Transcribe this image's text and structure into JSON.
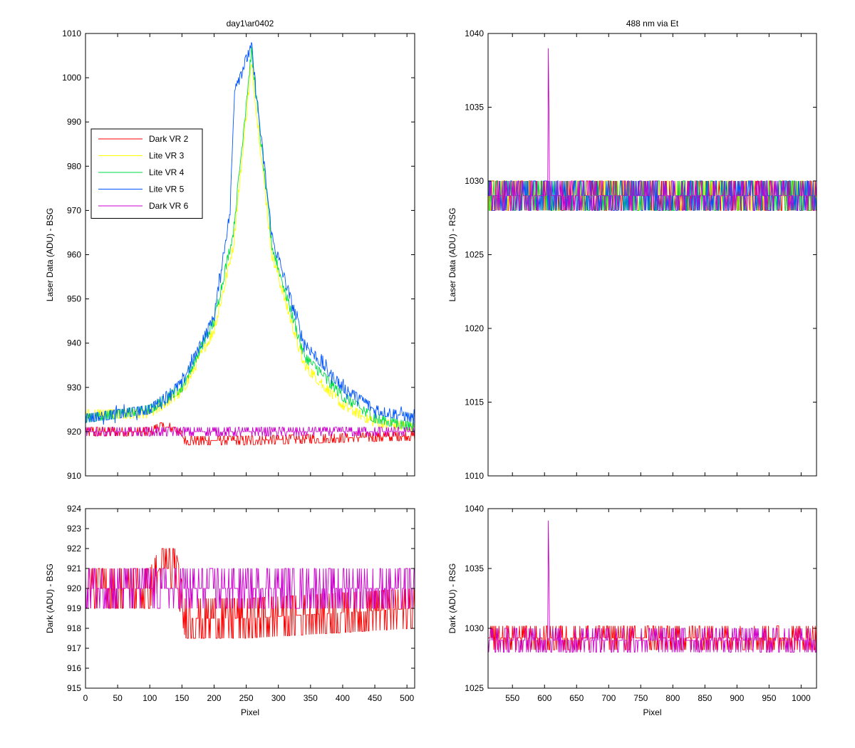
{
  "chart_data": [
    {
      "id": "top_left",
      "type": "line",
      "title": "day1\\ar0402",
      "xlabel": "",
      "ylabel": "Laser Data (ADU) - BSG",
      "xlim": [
        0,
        512
      ],
      "ylim": [
        910,
        1010
      ],
      "xticks": [
        0,
        50,
        100,
        150,
        200,
        250,
        300,
        350,
        400,
        450,
        500
      ],
      "xtick_labels_visible": false,
      "yticks": [
        910,
        920,
        930,
        940,
        950,
        960,
        970,
        980,
        990,
        1000,
        1010
      ],
      "legend": "upper-left",
      "series": [
        {
          "name": "Dark VR 2",
          "color": "#ff0000",
          "baseline": [
            [
              0,
              920
            ],
            [
              100,
              920
            ],
            [
              115,
              921
            ],
            [
              140,
              921
            ],
            [
              155,
              918
            ],
            [
              250,
              918
            ],
            [
              512,
              919
            ]
          ],
          "noise": 1.2
        },
        {
          "name": "Lite VR 3",
          "color": "#ffff00",
          "baseline": [
            [
              0,
              924
            ],
            [
              100,
              924
            ],
            [
              150,
              929
            ],
            [
              200,
              943
            ],
            [
              230,
              962
            ],
            [
              258,
              1003
            ],
            [
              290,
              960
            ],
            [
              340,
              935
            ],
            [
              400,
              926
            ],
            [
              450,
              922
            ],
            [
              512,
              921
            ]
          ],
          "noise": 1.5
        },
        {
          "name": "Lite VR 4",
          "color": "#00dd44",
          "baseline": [
            [
              0,
              923
            ],
            [
              100,
              925
            ],
            [
              150,
              930
            ],
            [
              200,
              945
            ],
            [
              230,
              965
            ],
            [
              258,
              1006
            ],
            [
              290,
              962
            ],
            [
              340,
              937
            ],
            [
              400,
              928
            ],
            [
              450,
              923
            ],
            [
              512,
              921
            ]
          ],
          "noise": 1.5
        },
        {
          "name": "Lite VR 5",
          "color": "#0055ff",
          "baseline": [
            [
              0,
              923
            ],
            [
              100,
              925
            ],
            [
              150,
              931
            ],
            [
              200,
              946
            ],
            [
              225,
              970
            ],
            [
              232,
              998
            ],
            [
              258,
              1007
            ],
            [
              290,
              964
            ],
            [
              340,
              940
            ],
            [
              400,
              930
            ],
            [
              450,
              925
            ],
            [
              512,
              923
            ]
          ],
          "noise": 1.6
        },
        {
          "name": "Dark VR 6",
          "color": "#cc00cc",
          "baseline": [
            [
              0,
              920
            ],
            [
              512,
              920
            ]
          ],
          "noise": 0.9
        }
      ]
    },
    {
      "id": "top_right",
      "type": "line",
      "title": "488 nm via Et",
      "xlabel": "",
      "ylabel": "Laser Data (ADU) - RSG",
      "xlim": [
        512,
        1024
      ],
      "ylim": [
        1010,
        1040
      ],
      "xticks": [
        550,
        600,
        650,
        700,
        750,
        800,
        850,
        900,
        950,
        1000
      ],
      "xtick_labels_visible": false,
      "yticks": [
        1010,
        1015,
        1020,
        1025,
        1030,
        1035,
        1040
      ],
      "series": [
        {
          "color": "#ff0000",
          "baseline": [
            [
              512,
              1029
            ],
            [
              1024,
              1029
            ]
          ],
          "noise": 1.2
        },
        {
          "color": "#ffff00",
          "baseline": [
            [
              512,
              1029
            ],
            [
              1024,
              1029
            ]
          ],
          "noise": 1.2
        },
        {
          "color": "#00dd44",
          "baseline": [
            [
              512,
              1029
            ],
            [
              1024,
              1029
            ]
          ],
          "noise": 1.2
        },
        {
          "color": "#0055ff",
          "baseline": [
            [
              512,
              1029
            ],
            [
              1024,
              1029
            ]
          ],
          "noise": 1.2
        },
        {
          "color": "#cc00cc",
          "baseline": [
            [
              512,
              1029
            ],
            [
              1024,
              1029
            ]
          ],
          "noise": 1.0,
          "spike": [
            606,
            1039
          ]
        }
      ]
    },
    {
      "id": "bottom_left",
      "type": "line",
      "title": "",
      "xlabel": "Pixel",
      "ylabel": "Dark (ADU) - BSG",
      "xlim": [
        0,
        512
      ],
      "ylim": [
        915,
        924
      ],
      "xticks": [
        0,
        50,
        100,
        150,
        200,
        250,
        300,
        350,
        400,
        450,
        500
      ],
      "xtick_labels_visible": true,
      "yticks": [
        915,
        916,
        917,
        918,
        919,
        920,
        921,
        922,
        923,
        924
      ],
      "series": [
        {
          "color": "#ff0000",
          "baseline": [
            [
              0,
              920
            ],
            [
              100,
              920
            ],
            [
              115,
              921
            ],
            [
              140,
              921
            ],
            [
              155,
              918.5
            ],
            [
              250,
              918.5
            ],
            [
              512,
              919
            ]
          ],
          "noise": 1.3
        },
        {
          "color": "#cc00cc",
          "baseline": [
            [
              0,
              920
            ],
            [
              512,
              920
            ]
          ],
          "noise": 1.0
        }
      ]
    },
    {
      "id": "bottom_right",
      "type": "line",
      "title": "",
      "xlabel": "Pixel",
      "ylabel": "Dark (ADU) - RSG",
      "xlim": [
        512,
        1024
      ],
      "ylim": [
        1025,
        1040
      ],
      "xticks": [
        550,
        600,
        650,
        700,
        750,
        800,
        850,
        900,
        950,
        1000
      ],
      "xtick_labels_visible": true,
      "yticks": [
        1025,
        1030,
        1035,
        1040
      ],
      "series": [
        {
          "color": "#ff0000",
          "baseline": [
            [
              512,
              1029.2
            ],
            [
              1024,
              1029.2
            ]
          ],
          "noise": 1.0
        },
        {
          "color": "#cc00cc",
          "baseline": [
            [
              512,
              1029
            ],
            [
              1024,
              1029
            ]
          ],
          "noise": 1.0,
          "spike": [
            606,
            1039
          ]
        }
      ]
    }
  ]
}
